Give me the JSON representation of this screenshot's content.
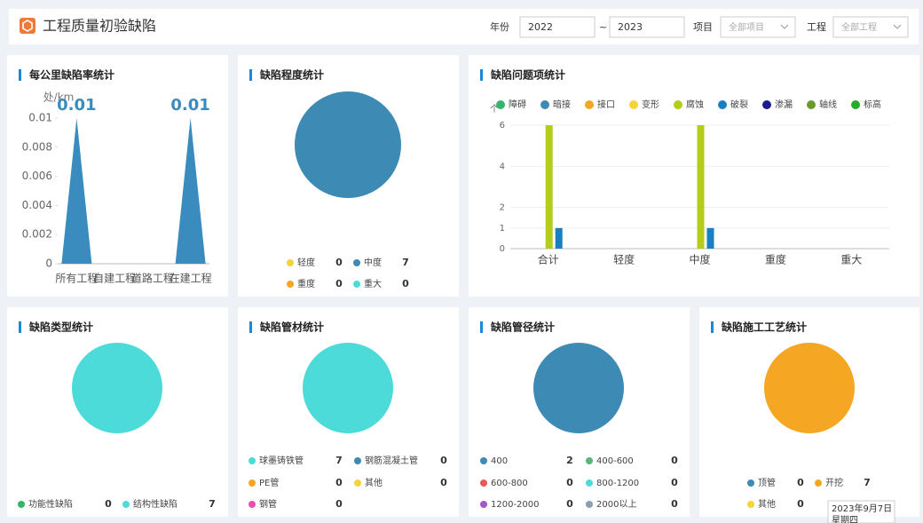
{
  "header": {
    "title": "工程质量初验缺陷",
    "year_label": "年份",
    "year_start": "2022",
    "range_sep": "~",
    "year_end": "2023",
    "project_label": "项目",
    "project_value": "全部项目",
    "work_label": "工程",
    "work_value": "全部工程"
  },
  "chart_data": [
    {
      "type": "bar",
      "title": "每公里缺陷率统计",
      "y_label": "处/km",
      "categories": [
        "所有工程",
        "自建工程",
        "道路工程",
        "在建工程"
      ],
      "values": [
        0.01,
        0,
        0,
        0.01
      ],
      "color": "#3a8cbf",
      "ylim": [
        0,
        0.01
      ],
      "yticks": [
        0,
        0.002,
        0.004,
        0.006,
        0.008,
        0.01
      ]
    },
    {
      "type": "pie",
      "title": "缺陷程度统计",
      "categories": [
        "轻度",
        "中度",
        "重度",
        "重大"
      ],
      "values": [
        0,
        7,
        0,
        0
      ],
      "colors": [
        "#f5d33b",
        "#3d8ab5",
        "#f5a623",
        "#4cdbd8"
      ]
    },
    {
      "type": "grouped",
      "title": "缺陷问题项统计",
      "y_label": "个",
      "categories": [
        "合计",
        "轻度",
        "中度",
        "重度",
        "重大"
      ],
      "ylim": [
        0,
        6
      ],
      "yticks": [
        0,
        1,
        2,
        4,
        6
      ],
      "grid": true,
      "series": [
        {
          "name": "障碍",
          "color": "#34b56a",
          "values": [
            0,
            0,
            0,
            0,
            0
          ]
        },
        {
          "name": "暗接",
          "color": "#3d8ab5",
          "values": [
            0,
            0,
            0,
            0,
            0
          ]
        },
        {
          "name": "接口",
          "color": "#f5a623",
          "values": [
            0,
            0,
            0,
            0,
            0
          ]
        },
        {
          "name": "变形",
          "color": "#f5d33b",
          "values": [
            0,
            0,
            0,
            0,
            0
          ]
        },
        {
          "name": "腐蚀",
          "color": "#b5cc18",
          "values": [
            6,
            0,
            6,
            0,
            0
          ]
        },
        {
          "name": "破裂",
          "color": "#1a7fc1",
          "values": [
            1,
            0,
            1,
            0,
            0
          ]
        },
        {
          "name": "渗漏",
          "color": "#1c1c8c",
          "values": [
            0,
            0,
            0,
            0,
            0
          ]
        },
        {
          "name": "轴线",
          "color": "#6a9a2a",
          "values": [
            0,
            0,
            0,
            0,
            0
          ]
        },
        {
          "name": "标高",
          "color": "#2aaa2a",
          "values": [
            0,
            0,
            0,
            0,
            0
          ]
        }
      ]
    },
    {
      "type": "pie",
      "title": "缺陷类型统计",
      "categories": [
        "功能性缺陷",
        "结构性缺陷"
      ],
      "values": [
        0,
        7
      ],
      "colors": [
        "#34b56a",
        "#4cdbd8"
      ]
    },
    {
      "type": "pie",
      "title": "缺陷管材统计",
      "categories": [
        "球墨铸铁管",
        "钢筋混凝土管",
        "PE管",
        "其他",
        "钢管"
      ],
      "values": [
        7,
        0,
        0,
        0,
        0
      ],
      "colors": [
        "#4cdbd8",
        "#3d8ab5",
        "#f5a623",
        "#f5d33b",
        "#e84fb0"
      ]
    },
    {
      "type": "pie",
      "title": "缺陷管径统计",
      "categories": [
        "400",
        "400-600",
        "600-800",
        "800-1200",
        "1200-2000",
        "2000以上"
      ],
      "values": [
        2,
        0,
        0,
        0,
        0,
        0
      ],
      "colors": [
        "#3d8ab5",
        "#5ab57a",
        "#e85a5a",
        "#4cdbd8",
        "#a05ac8",
        "#8aa0b0"
      ]
    },
    {
      "type": "pie",
      "title": "缺陷施工工艺统计",
      "categories": [
        "顶管",
        "开挖",
        "其他"
      ],
      "values": [
        0,
        7,
        0
      ],
      "colors": [
        "#3d8ab5",
        "#f5a623",
        "#f5d33b"
      ]
    }
  ],
  "clock": {
    "date": "2023年9月7日",
    "weekday": "星期四"
  }
}
